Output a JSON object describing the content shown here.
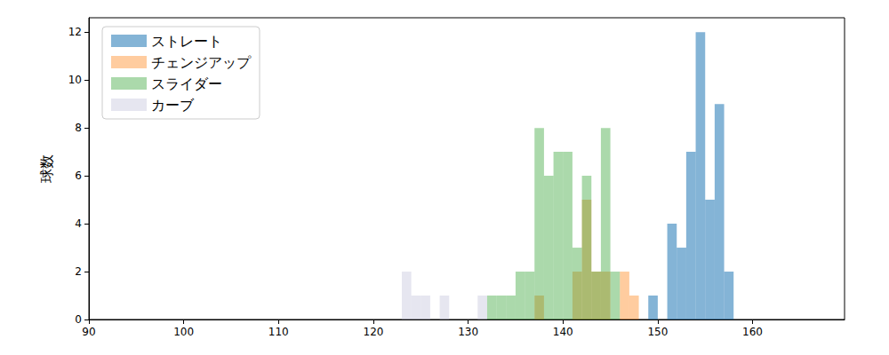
{
  "chart_data": {
    "type": "histogram",
    "y_label": "球数",
    "xlim": [
      90,
      169.7
    ],
    "ylim": [
      0,
      12.6
    ],
    "xticks": [
      90,
      100,
      110,
      120,
      130,
      140,
      150,
      160
    ],
    "yticks": [
      0,
      2,
      4,
      6,
      8,
      10,
      12
    ],
    "legend": "upper left",
    "grid": false,
    "series": [
      {
        "name": "ストレート",
        "color": "#1f77b4",
        "bins": [
          149,
          150,
          151,
          152,
          153,
          154,
          155,
          156,
          157,
          158
        ],
        "values": [
          1,
          0,
          4,
          3,
          7,
          12,
          5,
          9,
          2
        ]
      },
      {
        "name": "チェンジアップ",
        "color": "#ff7f0e",
        "bins": [
          137,
          138,
          139,
          140,
          141,
          142,
          143,
          144,
          145,
          146,
          147,
          148
        ],
        "values": [
          1,
          0,
          0,
          0,
          2,
          5,
          2,
          2,
          0,
          2,
          1
        ]
      },
      {
        "name": "スライダー",
        "color": "#2ca02c",
        "bins": [
          132,
          133,
          134,
          135,
          136,
          137,
          138,
          139,
          140,
          141,
          142,
          143,
          144,
          145,
          146
        ],
        "values": [
          1,
          1,
          1,
          2,
          2,
          8,
          6,
          7,
          7,
          3,
          6,
          2,
          8,
          2
        ]
      },
      {
        "name": "カーブ",
        "color": "#c0c0d9",
        "bins": [
          123,
          124,
          125,
          126,
          127,
          128,
          129,
          130,
          131,
          132
        ],
        "values": [
          2,
          1,
          1,
          0,
          1,
          0,
          0,
          0,
          1
        ]
      }
    ]
  }
}
